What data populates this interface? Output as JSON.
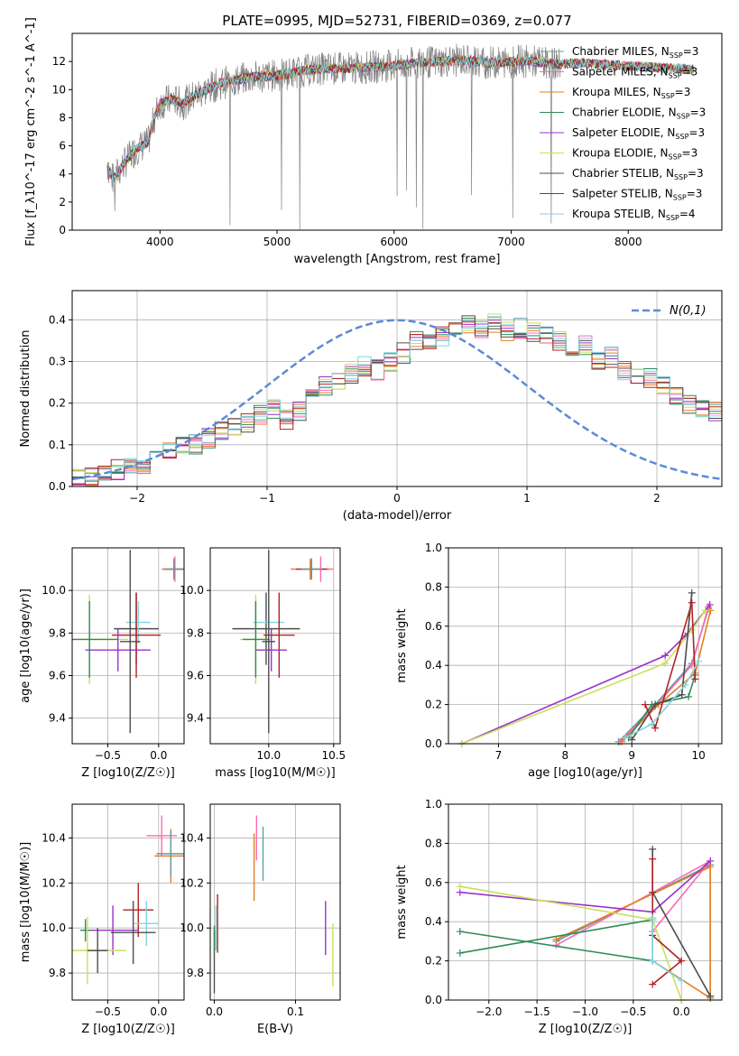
{
  "figure_title": "PLATE=0995, MJD=52731, FIBERID=0369, z=0.077",
  "colors": {
    "Chabrier MILES": "#5f9ea0",
    "Salpeter MILES": "#ff69b4",
    "Kroupa MILES": "#e67e22",
    "Chabrier ELODIE": "#2e8b57",
    "Salpeter ELODIE": "#9932cc",
    "Kroupa ELODIE": "#c8e05a",
    "Chabrier STELIB": "#4d4d4d",
    "Salpeter STELIB": "#b22222",
    "Kroupa STELIB": "#7fd6e0",
    "data": "#808080",
    "gaussian": "#5b8bd6"
  },
  "chart_data": [
    {
      "id": "spectrum",
      "type": "line",
      "title": "PLATE=0995, MJD=52731, FIBERID=0369, z=0.077",
      "xlabel": "wavelength [Angstrom, rest frame]",
      "ylabel": "Flux [f_λ10^-17 erg cm^-2 s^-1 A^-1]",
      "xlim": [
        3250,
        8800
      ],
      "ylim": [
        0,
        14
      ],
      "xticks": [
        4000,
        5000,
        6000,
        7000,
        8000
      ],
      "yticks": [
        0,
        2,
        4,
        6,
        8,
        10,
        12
      ],
      "grid": false,
      "legend_position": "right",
      "continuum": {
        "x": [
          3550,
          3600,
          3700,
          3800,
          3900,
          3950,
          4000,
          4100,
          4200,
          4300,
          4400,
          4500,
          4600,
          4800,
          5000,
          5200,
          5400,
          5600,
          5800,
          6000,
          6200,
          6400,
          6600,
          6800,
          7000,
          7200,
          7400,
          7600,
          7800,
          8000,
          8200,
          8400,
          8600
        ],
        "y": [
          4.6,
          3.6,
          4.8,
          5.8,
          6.2,
          8.0,
          9.0,
          9.3,
          9.0,
          9.6,
          10.0,
          10.4,
          10.6,
          10.9,
          11.0,
          11.3,
          11.5,
          11.5,
          11.6,
          11.7,
          11.9,
          12.0,
          12.1,
          11.9,
          12.0,
          12.0,
          11.8,
          11.9,
          11.8,
          11.7,
          11.6,
          11.5,
          11.4
        ]
      },
      "series": [
        {
          "name": "Chabrier MILES, N_SSP=3",
          "legend": "Chabrier MILES, N",
          "sub": "SSP",
          "suffix": "=3"
        },
        {
          "name": "Salpeter MILES, N_SSP=3",
          "legend": "Salpeter MILES, N",
          "sub": "SSP",
          "suffix": "=3"
        },
        {
          "name": "Kroupa MILES, N_SSP=3",
          "legend": "Kroupa MILES, N",
          "sub": "SSP",
          "suffix": "=3"
        },
        {
          "name": "Chabrier ELODIE, N_SSP=3",
          "legend": "Chabrier ELODIE, N",
          "sub": "SSP",
          "suffix": "=3"
        },
        {
          "name": "Salpeter ELODIE, N_SSP=3",
          "legend": "Salpeter ELODIE, N",
          "sub": "SSP",
          "suffix": "=3"
        },
        {
          "name": "Kroupa ELODIE, N_SSP=3",
          "legend": "Kroupa ELODIE, N",
          "sub": "SSP",
          "suffix": "=3"
        },
        {
          "name": "Chabrier STELIB, N_SSP=3",
          "legend": "Chabrier STELIB, N",
          "sub": "SSP",
          "suffix": "=3"
        },
        {
          "name": "Salpeter STELIB, N_SSP=3",
          "legend": "Salpeter STELIB, N",
          "sub": "SSP",
          "suffix": "=3"
        },
        {
          "name": "Kroupa STELIB, N_SSP=4",
          "legend": "Kroupa STELIB, N",
          "sub": "SSP",
          "suffix": "=4"
        }
      ]
    },
    {
      "id": "residuals",
      "type": "bar",
      "xlabel": "(data-model)/error",
      "ylabel": "Normed distribution",
      "xlim": [
        -2.5,
        2.5
      ],
      "ylim": [
        0,
        0.47
      ],
      "xticks": [
        -2,
        -1,
        0,
        1,
        2
      ],
      "yticks": [
        0.0,
        0.1,
        0.2,
        0.3,
        0.4
      ],
      "grid": true,
      "legend_position": "top-right",
      "legend": "N(0,1)",
      "bin_width": 0.1,
      "bin_start": -2.5,
      "base_values": [
        0.022,
        0.025,
        0.03,
        0.04,
        0.05,
        0.055,
        0.07,
        0.085,
        0.1,
        0.1,
        0.115,
        0.13,
        0.14,
        0.155,
        0.17,
        0.185,
        0.16,
        0.18,
        0.22,
        0.24,
        0.255,
        0.27,
        0.29,
        0.28,
        0.3,
        0.32,
        0.35,
        0.34,
        0.36,
        0.37,
        0.39,
        0.38,
        0.39,
        0.37,
        0.38,
        0.37,
        0.36,
        0.35,
        0.33,
        0.34,
        0.3,
        0.31,
        0.28,
        0.27,
        0.26,
        0.24,
        0.22,
        0.2,
        0.19,
        0.18,
        0.17,
        0.155,
        0.14,
        0.12,
        0.105,
        0.09,
        0.075,
        0.075,
        0.06,
        0.055,
        0.05,
        0.04,
        0.035,
        0.03,
        0.028,
        0.025,
        0.022,
        0.02,
        0.018,
        0.015
      ]
    },
    {
      "id": "age_vs_Z",
      "type": "scatter",
      "xlabel": "Z [log10(Z/Z☉)]",
      "ylabel": "age  [log10(age/yr)]",
      "xlim": [
        -0.85,
        0.25
      ],
      "ylim": [
        9.28,
        10.2
      ],
      "xticks": [
        -0.5,
        0.0
      ],
      "yticks": [
        9.4,
        9.6,
        9.8,
        10.0
      ],
      "grid": true,
      "points": [
        {
          "s": 2,
          "x": 0.15,
          "y": 10.1,
          "xe": 0.12,
          "ye": 0.05
        },
        {
          "s": 1,
          "x": 0.16,
          "y": 10.1,
          "xe": 0.1,
          "ye": 0.06
        },
        {
          "s": 7,
          "x": 0.15,
          "y": 10.1,
          "xe": 0.1,
          "ye": 0.04
        },
        {
          "s": 0,
          "x": 0.15,
          "y": 10.1,
          "xe": 0.1,
          "ye": 0.05
        },
        {
          "s": 6,
          "x": -0.22,
          "y": 9.82,
          "xe": 0.22,
          "ye": 0.17
        },
        {
          "s": 8,
          "x": -0.2,
          "y": 9.85,
          "xe": 0.12,
          "ye": 0.1
        },
        {
          "s": 7,
          "x": -0.22,
          "y": 9.79,
          "xe": 0.24,
          "ye": 0.2
        },
        {
          "s": 5,
          "x": -0.68,
          "y": 9.77,
          "xe": 0.38,
          "ye": 0.21
        },
        {
          "s": 4,
          "x": -0.4,
          "y": 9.72,
          "xe": 0.32,
          "ye": 0.1
        },
        {
          "s": 3,
          "x": -0.68,
          "y": 9.77,
          "xe": 0.28,
          "ye": 0.18
        },
        {
          "s": 6,
          "x": -0.28,
          "y": 9.76,
          "xe": 0.1,
          "ye": 0.43
        }
      ]
    },
    {
      "id": "age_vs_mass",
      "type": "scatter",
      "xlabel": "mass [log10(M/M☉)]",
      "ylabel": "",
      "xlim": [
        9.55,
        10.55
      ],
      "ylim": [
        9.28,
        10.2
      ],
      "xticks": [
        10.0,
        10.5
      ],
      "yticks": [
        9.4,
        9.6,
        9.8,
        10.0
      ],
      "grid": true,
      "points": [
        {
          "s": 1,
          "x": 10.4,
          "y": 10.1,
          "xe": 0.1,
          "ye": 0.06
        },
        {
          "s": 2,
          "x": 10.32,
          "y": 10.1,
          "xe": 0.15,
          "ye": 0.05
        },
        {
          "s": 7,
          "x": 10.33,
          "y": 10.1,
          "xe": 0.12,
          "ye": 0.04
        },
        {
          "s": 0,
          "x": 10.33,
          "y": 10.1,
          "xe": 0.08,
          "ye": 0.05
        },
        {
          "s": 6,
          "x": 9.98,
          "y": 9.82,
          "xe": 0.26,
          "ye": 0.17
        },
        {
          "s": 8,
          "x": 10.0,
          "y": 9.85,
          "xe": 0.12,
          "ye": 0.1
        },
        {
          "s": 7,
          "x": 10.08,
          "y": 9.79,
          "xe": 0.12,
          "ye": 0.2
        },
        {
          "s": 5,
          "x": 9.9,
          "y": 9.77,
          "xe": 0.12,
          "ye": 0.21
        },
        {
          "s": 4,
          "x": 10.02,
          "y": 9.72,
          "xe": 0.12,
          "ye": 0.1
        },
        {
          "s": 3,
          "x": 9.9,
          "y": 9.77,
          "xe": 0.1,
          "ye": 0.18
        },
        {
          "s": 6,
          "x": 10.0,
          "y": 9.76,
          "xe": 0.05,
          "ye": 0.43
        }
      ]
    },
    {
      "id": "weight_vs_age",
      "type": "line",
      "xlabel": "age  [log10(age/yr)]",
      "ylabel": "mass weight",
      "xlim": [
        6.25,
        10.35
      ],
      "ylim": [
        0,
        1
      ],
      "xticks": [
        7,
        8,
        9,
        10
      ],
      "yticks": [
        0.0,
        0.2,
        0.4,
        0.6,
        0.8,
        1.0
      ],
      "grid": true,
      "series": [
        {
          "s": 0,
          "x": [
            8.8,
            9.35,
            9.9,
            10.15
          ],
          "y": [
            0.01,
            0.2,
            0.41,
            0.69
          ]
        },
        {
          "s": 1,
          "x": [
            8.82,
            9.35,
            9.9,
            10.15
          ],
          "y": [
            0.01,
            0.19,
            0.4,
            0.7
          ]
        },
        {
          "s": 2,
          "x": [
            8.85,
            9.4,
            9.95,
            10.18
          ],
          "y": [
            0.01,
            0.2,
            0.36,
            0.68
          ]
        },
        {
          "s": 3,
          "x": [
            8.95,
            9.3,
            9.85,
            9.95
          ],
          "y": [
            0.03,
            0.2,
            0.24,
            0.35
          ]
        },
        {
          "s": 4,
          "x": [
            6.45,
            9.5,
            9.8,
            10.17
          ],
          "y": [
            0.0,
            0.45,
            0.55,
            0.71
          ]
        },
        {
          "s": 5,
          "x": [
            6.45,
            9.5,
            9.9,
            10.1
          ],
          "y": [
            0.0,
            0.41,
            0.58,
            0.68
          ]
        },
        {
          "s": 6,
          "x": [
            9.0,
            9.35,
            9.75,
            9.9
          ],
          "y": [
            0.02,
            0.2,
            0.25,
            0.77
          ]
        },
        {
          "s": 7,
          "x": [
            9.2,
            9.35,
            9.9,
            9.95
          ],
          "y": [
            0.2,
            0.08,
            0.72,
            0.33
          ]
        },
        {
          "s": 8,
          "x": [
            8.9,
            9.3,
            9.8,
            10.0
          ],
          "y": [
            0.03,
            0.1,
            0.3,
            0.42
          ]
        }
      ]
    },
    {
      "id": "mass_vs_Z",
      "type": "scatter",
      "xlabel": "Z [log10(Z/Z☉)]",
      "ylabel": "mass [log10(M/M☉)]",
      "xlim": [
        -0.85,
        0.25
      ],
      "ylim": [
        9.68,
        10.55
      ],
      "xticks": [
        -0.5,
        0.0
      ],
      "yticks": [
        9.8,
        10.0,
        10.2,
        10.4
      ],
      "grid": true,
      "points": [
        {
          "s": 1,
          "x": 0.03,
          "y": 10.41,
          "xe": 0.15,
          "ye": 0.09
        },
        {
          "s": 2,
          "x": 0.12,
          "y": 10.32,
          "xe": 0.16,
          "ye": 0.12
        },
        {
          "s": 0,
          "x": 0.12,
          "y": 10.33,
          "xe": 0.14,
          "ye": 0.1
        },
        {
          "s": 7,
          "x": -0.2,
          "y": 10.08,
          "xe": 0.15,
          "ye": 0.12
        },
        {
          "s": 8,
          "x": -0.12,
          "y": 10.02,
          "xe": 0.12,
          "ye": 0.1
        },
        {
          "s": 4,
          "x": -0.45,
          "y": 9.99,
          "xe": 0.25,
          "ye": 0.11
        },
        {
          "s": 3,
          "x": -0.72,
          "y": 9.99,
          "xe": 0.05,
          "ye": 0.05
        },
        {
          "s": 5,
          "x": -0.7,
          "y": 9.9,
          "xe": 0.38,
          "ye": 0.15
        },
        {
          "s": 6,
          "x": -0.25,
          "y": 9.98,
          "xe": 0.22,
          "ye": 0.14
        },
        {
          "s": 6,
          "x": -0.6,
          "y": 9.9,
          "xe": 0.1,
          "ye": 0.1
        }
      ]
    },
    {
      "id": "mass_vs_EBV",
      "type": "scatter",
      "xlabel": "E(B-V)",
      "ylabel": "",
      "xlim": [
        -0.005,
        0.155
      ],
      "ylim": [
        9.68,
        10.55
      ],
      "xticks": [
        0.0,
        0.1
      ],
      "yticks": [
        9.8,
        10.0,
        10.2,
        10.4
      ],
      "grid": true,
      "points": [
        {
          "s": 1,
          "x": 0.052,
          "y": 10.4,
          "xe": 0,
          "ye": 0.1
        },
        {
          "s": 2,
          "x": 0.049,
          "y": 10.27,
          "xe": 0,
          "ye": 0.15
        },
        {
          "s": 0,
          "x": 0.06,
          "y": 10.33,
          "xe": 0,
          "ye": 0.12
        },
        {
          "s": 6,
          "x": 0.0,
          "y": 9.85,
          "xe": 0,
          "ye": 0.14
        },
        {
          "s": 7,
          "x": 0.004,
          "y": 10.02,
          "xe": 0,
          "ye": 0.13
        },
        {
          "s": 8,
          "x": 0.002,
          "y": 10.0,
          "xe": 0,
          "ye": 0.1
        },
        {
          "s": 4,
          "x": 0.137,
          "y": 10.0,
          "xe": 0,
          "ye": 0.12
        },
        {
          "s": 5,
          "x": 0.146,
          "y": 9.88,
          "xe": 0,
          "ye": 0.14
        },
        {
          "s": 3,
          "x": 0.0,
          "y": 9.95,
          "xe": 0,
          "ye": 0.06
        }
      ]
    },
    {
      "id": "weight_vs_Z",
      "type": "line",
      "xlabel": "Z [log10(Z/Z☉)]",
      "ylabel": "mass weight",
      "xlim": [
        -2.42,
        0.42
      ],
      "ylim": [
        0,
        1
      ],
      "xticks": [
        -2.0,
        -1.5,
        -1.0,
        -0.5,
        0.0
      ],
      "yticks": [
        0.0,
        0.2,
        0.4,
        0.6,
        0.8,
        1.0
      ],
      "grid": true,
      "series": [
        {
          "s": 0,
          "x": [
            -1.3,
            0.3,
            0.3
          ],
          "y": [
            0.3,
            0.69,
            0.01
          ]
        },
        {
          "s": 1,
          "x": [
            -1.3,
            0.3,
            -0.3
          ],
          "y": [
            0.28,
            0.71,
            0.35
          ]
        },
        {
          "s": 2,
          "x": [
            -1.3,
            0.3,
            0.3,
            -0.3
          ],
          "y": [
            0.31,
            0.68,
            0.01,
            0.2
          ]
        },
        {
          "s": 3,
          "x": [
            -2.3,
            -0.3,
            -0.3,
            -2.3
          ],
          "y": [
            0.24,
            0.41,
            0.2,
            0.35
          ]
        },
        {
          "s": 4,
          "x": [
            -2.3,
            -0.3,
            0.3
          ],
          "y": [
            0.55,
            0.45,
            0.71
          ]
        },
        {
          "s": 5,
          "x": [
            -2.3,
            -0.3,
            0.0
          ],
          "y": [
            0.58,
            0.41,
            0.0
          ]
        },
        {
          "s": 6,
          "x": [
            -0.3,
            -0.3,
            0.3
          ],
          "y": [
            0.77,
            0.55,
            0.02
          ]
        },
        {
          "s": 7,
          "x": [
            -0.3,
            -0.3,
            0.0,
            -0.3
          ],
          "y": [
            0.72,
            0.33,
            0.2,
            0.08
          ]
        },
        {
          "s": 8,
          "x": [
            -0.3,
            -0.3,
            0.0
          ],
          "y": [
            0.42,
            0.2,
            0.1
          ]
        }
      ]
    }
  ]
}
